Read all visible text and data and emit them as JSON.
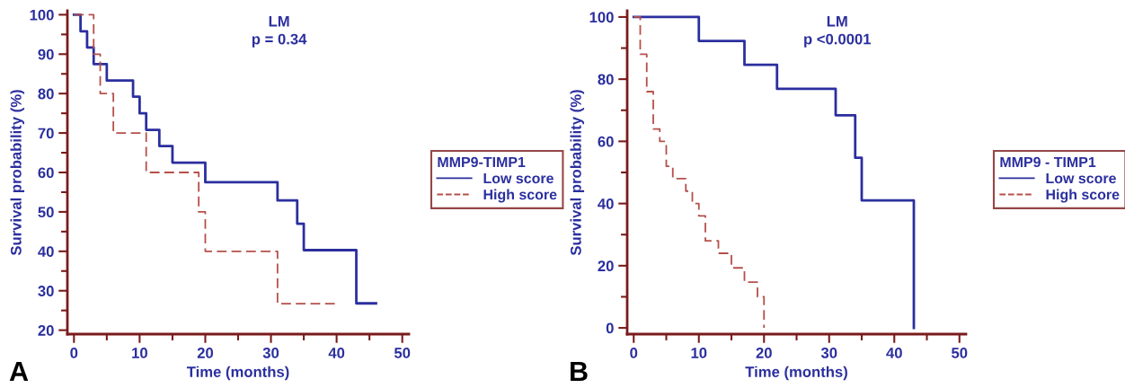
{
  "chart_data": [
    {
      "type": "step",
      "title": "LM",
      "subtitle": "p = 0.34",
      "xlabel": "Time (months)",
      "ylabel": "Survival probability (%)",
      "legend_title": "MMP9-TIMP1",
      "legend": "right",
      "annotations": [
        "A"
      ],
      "series": [
        {
          "name": "Low score",
          "color": "#2b2f9e",
          "line_style": "solid",
          "x": [
            0,
            1,
            2,
            3,
            5,
            9,
            10,
            11,
            13,
            15,
            20,
            31,
            34,
            35,
            43,
            46
          ],
          "values": [
            100,
            95.8,
            91.7,
            87.5,
            83.3,
            79.2,
            75,
            70.8,
            66.7,
            62.5,
            57.5,
            52.9,
            47,
            40.3,
            26.8,
            26.8
          ]
        },
        {
          "name": "High score",
          "color": "#b5504a",
          "line_style": "dashed",
          "x": [
            0,
            3,
            4,
            6,
            11,
            19,
            20,
            31,
            40
          ],
          "values": [
            100,
            90,
            80,
            70,
            60,
            50,
            40,
            26.7,
            26.7
          ]
        }
      ],
      "xlim": [
        -1,
        51
      ],
      "ylim": [
        19,
        101
      ],
      "xticks": [
        0,
        {
          "value": 5,
          "label": null
        },
        10,
        {
          "value": 15,
          "label": null
        },
        20,
        {
          "value": 25,
          "label": null
        },
        30,
        {
          "value": 35,
          "label": null
        },
        40,
        {
          "value": 45,
          "label": null
        },
        50
      ],
      "yticks": [
        20,
        {
          "value": 25,
          "label": null
        },
        30,
        {
          "value": 35,
          "label": null
        },
        40,
        {
          "value": 45,
          "label": null
        },
        50,
        {
          "value": 55,
          "label": null
        },
        60,
        {
          "value": 65,
          "label": null
        },
        70,
        {
          "value": 75,
          "label": null
        },
        80,
        {
          "value": 85,
          "label": null
        },
        90,
        {
          "value": 95,
          "label": null
        },
        100
      ]
    },
    {
      "type": "step",
      "title": "LM",
      "subtitle": "p <0.0001",
      "xlabel": "Time (months)",
      "ylabel": "Survival probability (%)",
      "legend_title": "MMP9 - TIMP1",
      "legend": "right",
      "annotations": [
        "B"
      ],
      "series": [
        {
          "name": "Low score",
          "color": "#2b2f9e",
          "line_style": "solid",
          "x": [
            0,
            10,
            17,
            22,
            31,
            34,
            35,
            43,
            43
          ],
          "values": [
            100,
            92.3,
            84.6,
            76.9,
            68.4,
            54.7,
            41,
            0,
            0
          ]
        },
        {
          "name": "High score",
          "color": "#b5504a",
          "line_style": "dashed",
          "x": [
            0,
            1,
            2,
            3,
            4,
            5,
            6,
            8,
            9,
            10,
            11,
            13,
            15,
            17,
            19,
            20,
            20
          ],
          "values": [
            100,
            88,
            76,
            64,
            60,
            52,
            48,
            44,
            40,
            36,
            28,
            24,
            19.3,
            14.7,
            10,
            0,
            0
          ]
        }
      ],
      "xlim": [
        -1,
        51
      ],
      "ylim": [
        -2,
        102
      ],
      "xticks": [
        0,
        {
          "value": 5,
          "label": null
        },
        10,
        {
          "value": 15,
          "label": null
        },
        20,
        {
          "value": 25,
          "label": null
        },
        30,
        {
          "value": 35,
          "label": null
        },
        40,
        {
          "value": 45,
          "label": null
        },
        50
      ],
      "yticks": [
        0,
        {
          "value": 10,
          "label": null
        },
        20,
        {
          "value": 30,
          "label": null
        },
        40,
        {
          "value": 50,
          "label": null
        },
        60,
        {
          "value": 70,
          "label": null
        },
        80,
        {
          "value": 90,
          "label": null
        },
        100
      ]
    }
  ]
}
